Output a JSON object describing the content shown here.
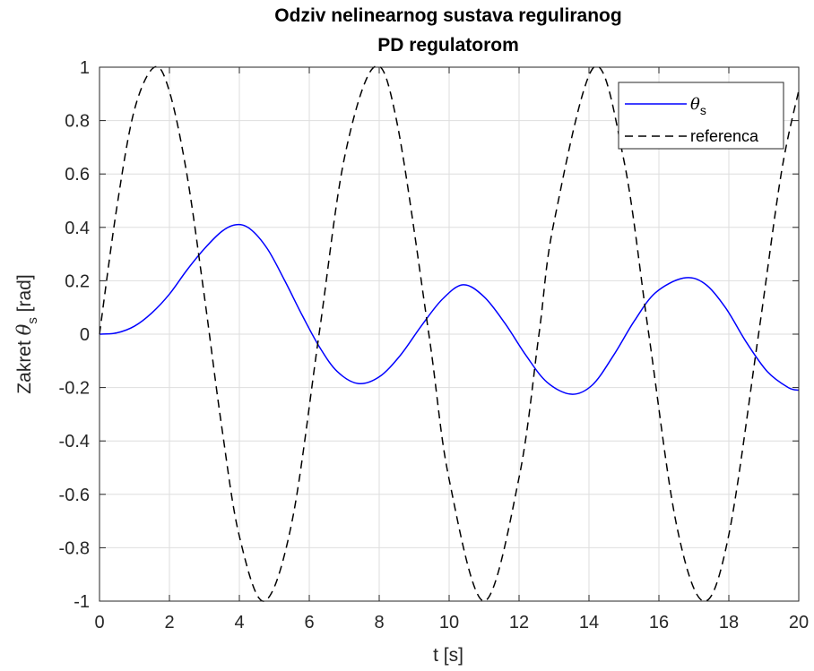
{
  "chart_data": {
    "type": "line",
    "title": [
      "Odziv nelinearnog sustava reguliranog",
      "PD regulatorom"
    ],
    "xlabel": "t [s]",
    "ylabel": {
      "prefix": "Zakret ",
      "symbol": "θ",
      "subscript": "s",
      "suffix": " [rad]"
    },
    "xlim": [
      0,
      20
    ],
    "ylim": [
      -1,
      1
    ],
    "xticks": [
      0,
      2,
      4,
      6,
      8,
      10,
      12,
      14,
      16,
      18,
      20
    ],
    "xtick_labels": [
      "0",
      "2",
      "4",
      "6",
      "8",
      "10",
      "12",
      "14",
      "16",
      "18",
      "20"
    ],
    "yticks": [
      -1,
      -0.8,
      -0.6,
      -0.4,
      -0.2,
      0,
      0.2,
      0.4,
      0.6,
      0.8,
      1
    ],
    "ytick_labels": [
      "-1",
      "-0.8",
      "-0.6",
      "-0.4",
      "-0.2",
      "0",
      "0.2",
      "0.4",
      "0.6",
      "0.8",
      "1"
    ],
    "grid": true,
    "legend_position": "top-right",
    "series": [
      {
        "name": "θ",
        "name_subscript": "s",
        "color": "#0000ff",
        "dash": "solid",
        "x": [
          0,
          0.5,
          1.0,
          1.5,
          2.0,
          2.5,
          3.0,
          3.5,
          3.9,
          4.3,
          4.8,
          5.3,
          5.8,
          6.3,
          6.8,
          7.4,
          8.0,
          8.6,
          9.2,
          9.8,
          10.4,
          11.0,
          11.6,
          12.2,
          12.8,
          13.5,
          14.1,
          14.7,
          15.3,
          15.9,
          16.7,
          17.3,
          17.9,
          18.5,
          19.1,
          19.7,
          20.0
        ],
        "y": [
          0,
          0.005,
          0.03,
          0.08,
          0.15,
          0.24,
          0.32,
          0.385,
          0.41,
          0.395,
          0.32,
          0.2,
          0.07,
          -0.05,
          -0.14,
          -0.185,
          -0.16,
          -0.08,
          0.03,
          0.13,
          0.185,
          0.14,
          0.04,
          -0.08,
          -0.18,
          -0.225,
          -0.19,
          -0.08,
          0.05,
          0.155,
          0.21,
          0.19,
          0.1,
          -0.03,
          -0.14,
          -0.2,
          -0.21
        ]
      },
      {
        "name": "referenca",
        "color": "#000000",
        "dash": "dashed",
        "function": "sin(t)",
        "x": [
          0,
          0.5,
          1.0,
          1.57,
          2.0,
          2.5,
          3.0,
          3.5,
          4.0,
          4.71,
          5.5,
          6.28,
          7.0,
          7.85,
          8.5,
          9.42,
          10.0,
          11.0,
          12.0,
          12.57,
          13.0,
          14.14,
          15.0,
          15.71,
          16.5,
          17.28,
          18.0,
          18.85,
          19.5,
          20.0
        ],
        "y": [
          0,
          0.479,
          0.841,
          1.0,
          0.909,
          0.598,
          0.141,
          -0.351,
          -0.757,
          -1.0,
          -0.706,
          0,
          0.657,
          1.0,
          0.798,
          0,
          -0.544,
          -1.0,
          -0.537,
          0,
          0.42,
          1.0,
          0.65,
          0,
          -0.712,
          -1.0,
          -0.751,
          0,
          0.603,
          0.913
        ]
      }
    ]
  }
}
